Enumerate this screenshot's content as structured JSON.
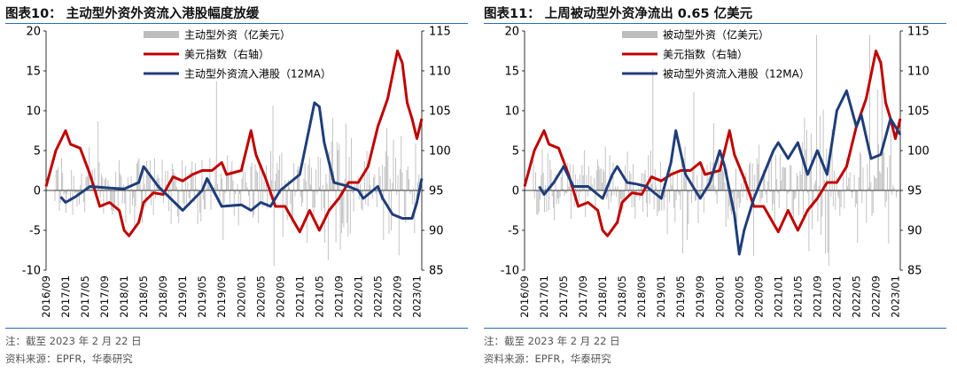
{
  "charts": [
    {
      "title": "图表10： 主动型外资外资流入港股幅度放缓",
      "note": "注：截至 2023 年 2 月 22 日",
      "source": "资料来源：EPFR，华泰研究",
      "legend": [
        "主动型外资（亿美元）",
        "美元指数（右轴）",
        "主动型外资流入港股（12MA）"
      ],
      "colors": {
        "bars": "#bdbdbd",
        "dxy": "#c00000",
        "ma": "#1f3d7a"
      }
    },
    {
      "title": "图表11： 上周被动型外资净流出 0.65 亿美元",
      "note": "注：截至 2023 年 2 月 22 日",
      "source": "资料来源：EPFR，华泰研究",
      "legend": [
        "被动型外资（亿美元）",
        "美元指数（右轴）",
        "被动型外资流入港股（12MA）"
      ],
      "colors": {
        "bars": "#bdbdbd",
        "dxy": "#c00000",
        "ma": "#1f3d7a"
      }
    }
  ],
  "chart_data": [
    {
      "type": "line",
      "x_axis": {
        "start": "2016/09",
        "end": "2023/02",
        "tick_labels": [
          "2016/09",
          "2017/01",
          "2017/05",
          "2017/09",
          "2018/01",
          "2018/05",
          "2018/09",
          "2019/01",
          "2019/05",
          "2019/09",
          "2020/01",
          "2020/05",
          "2020/09",
          "2021/01",
          "2021/05",
          "2021/09",
          "2022/01",
          "2022/05",
          "2022/09",
          "2023/01"
        ]
      },
      "y_left": {
        "min": -10,
        "max": 20,
        "ticks": [
          -10,
          -5,
          0,
          5,
          10,
          15,
          20
        ]
      },
      "y_right": {
        "min": 85,
        "max": 115,
        "ticks": [
          85,
          90,
          95,
          100,
          105,
          110,
          115
        ]
      },
      "series": [
        {
          "name": "美元指数（右轴）",
          "axis": "right",
          "points": [
            [
              "2016/09",
              95.5
            ],
            [
              "2016/11",
              100.0
            ],
            [
              "2017/01",
              102.5
            ],
            [
              "2017/02",
              100.8
            ],
            [
              "2017/04",
              100.3
            ],
            [
              "2017/06",
              97.0
            ],
            [
              "2017/08",
              93.0
            ],
            [
              "2017/10",
              93.5
            ],
            [
              "2017/12",
              92.5
            ],
            [
              "2018/01",
              90.0
            ],
            [
              "2018/02",
              89.3
            ],
            [
              "2018/04",
              91.0
            ],
            [
              "2018/05",
              93.5
            ],
            [
              "2018/07",
              94.7
            ],
            [
              "2018/09",
              94.5
            ],
            [
              "2018/11",
              96.7
            ],
            [
              "2019/01",
              96.2
            ],
            [
              "2019/03",
              97.0
            ],
            [
              "2019/05",
              97.5
            ],
            [
              "2019/07",
              97.5
            ],
            [
              "2019/09",
              98.5
            ],
            [
              "2019/10",
              97.0
            ],
            [
              "2020/01",
              97.5
            ],
            [
              "2020/03",
              102.5
            ],
            [
              "2020/04",
              99.5
            ],
            [
              "2020/06",
              96.5
            ],
            [
              "2020/08",
              93.0
            ],
            [
              "2020/10",
              93.0
            ],
            [
              "2021/01",
              89.8
            ],
            [
              "2021/03",
              92.5
            ],
            [
              "2021/05",
              90.0
            ],
            [
              "2021/07",
              92.5
            ],
            [
              "2021/09",
              94.0
            ],
            [
              "2021/11",
              96.0
            ],
            [
              "2022/01",
              96.0
            ],
            [
              "2022/03",
              98.0
            ],
            [
              "2022/05",
              103.0
            ],
            [
              "2022/07",
              106.5
            ],
            [
              "2022/09",
              112.5
            ],
            [
              "2022/10",
              111.0
            ],
            [
              "2022/11",
              106.0
            ],
            [
              "2022/12",
              104.0
            ],
            [
              "2023/01",
              101.5
            ],
            [
              "2023/02",
              104.0
            ]
          ]
        },
        {
          "name": "主动型外资流入港股（12MA）",
          "axis": "left",
          "points": [
            [
              "2016/12",
              -0.8
            ],
            [
              "2017/01",
              -1.5
            ],
            [
              "2017/03",
              -0.8
            ],
            [
              "2017/06",
              0.5
            ],
            [
              "2017/10",
              0.3
            ],
            [
              "2018/01",
              0.2
            ],
            [
              "2018/04",
              1.0
            ],
            [
              "2018/05",
              3.0
            ],
            [
              "2018/08",
              0.5
            ],
            [
              "2019/01",
              -2.5
            ],
            [
              "2019/05",
              0.0
            ],
            [
              "2019/06",
              1.5
            ],
            [
              "2019/09",
              -2.0
            ],
            [
              "2020/01",
              -1.8
            ],
            [
              "2020/03",
              -2.5
            ],
            [
              "2020/05",
              -1.5
            ],
            [
              "2020/07",
              -2.0
            ],
            [
              "2020/09",
              0.0
            ],
            [
              "2020/11",
              1.0
            ],
            [
              "2021/01",
              2.0
            ],
            [
              "2021/03",
              8.0
            ],
            [
              "2021/04",
              11.0
            ],
            [
              "2021/05",
              10.5
            ],
            [
              "2021/06",
              6.0
            ],
            [
              "2021/08",
              1.0
            ],
            [
              "2021/11",
              0.5
            ],
            [
              "2022/01",
              0.0
            ],
            [
              "2022/02",
              -1.0
            ],
            [
              "2022/03",
              -0.5
            ],
            [
              "2022/05",
              0.5
            ],
            [
              "2022/06",
              -1.0
            ],
            [
              "2022/08",
              -3.0
            ],
            [
              "2022/10",
              -3.5
            ],
            [
              "2022/12",
              -3.5
            ],
            [
              "2023/01",
              -1.5
            ],
            [
              "2023/02",
              1.5
            ]
          ]
        }
      ]
    },
    {
      "type": "line",
      "x_axis": {
        "start": "2016/09",
        "end": "2023/02",
        "tick_labels": [
          "2016/09",
          "2017/01",
          "2017/05",
          "2017/09",
          "2018/01",
          "2018/05",
          "2018/09",
          "2019/01",
          "2019/05",
          "2019/09",
          "2020/01",
          "2020/05",
          "2020/09",
          "2021/01",
          "2021/05",
          "2021/09",
          "2022/01",
          "2022/05",
          "2022/09",
          "2023/01"
        ]
      },
      "y_left": {
        "min": -10,
        "max": 20,
        "ticks": [
          -10,
          -5,
          0,
          5,
          10,
          15,
          20
        ]
      },
      "y_right": {
        "min": 85,
        "max": 115,
        "ticks": [
          85,
          90,
          95,
          100,
          105,
          110,
          115
        ]
      },
      "series": [
        {
          "name": "美元指数（右轴）",
          "axis": "right",
          "points": [
            [
              "2016/09",
              95.5
            ],
            [
              "2016/11",
              100.0
            ],
            [
              "2017/01",
              102.5
            ],
            [
              "2017/02",
              100.8
            ],
            [
              "2017/04",
              100.3
            ],
            [
              "2017/06",
              97.0
            ],
            [
              "2017/08",
              93.0
            ],
            [
              "2017/10",
              93.5
            ],
            [
              "2017/12",
              92.5
            ],
            [
              "2018/01",
              90.0
            ],
            [
              "2018/02",
              89.3
            ],
            [
              "2018/04",
              91.0
            ],
            [
              "2018/05",
              93.5
            ],
            [
              "2018/07",
              94.7
            ],
            [
              "2018/09",
              94.5
            ],
            [
              "2018/11",
              96.7
            ],
            [
              "2019/01",
              96.2
            ],
            [
              "2019/03",
              97.0
            ],
            [
              "2019/05",
              97.5
            ],
            [
              "2019/07",
              97.5
            ],
            [
              "2019/09",
              98.5
            ],
            [
              "2019/10",
              97.0
            ],
            [
              "2020/01",
              97.5
            ],
            [
              "2020/03",
              102.5
            ],
            [
              "2020/04",
              99.5
            ],
            [
              "2020/06",
              96.5
            ],
            [
              "2020/08",
              93.0
            ],
            [
              "2020/10",
              93.0
            ],
            [
              "2021/01",
              89.8
            ],
            [
              "2021/03",
              92.5
            ],
            [
              "2021/05",
              90.0
            ],
            [
              "2021/07",
              92.5
            ],
            [
              "2021/09",
              94.0
            ],
            [
              "2021/11",
              96.0
            ],
            [
              "2022/01",
              96.0
            ],
            [
              "2022/03",
              98.0
            ],
            [
              "2022/05",
              103.0
            ],
            [
              "2022/07",
              106.5
            ],
            [
              "2022/09",
              112.5
            ],
            [
              "2022/10",
              111.0
            ],
            [
              "2022/11",
              106.0
            ],
            [
              "2022/12",
              104.0
            ],
            [
              "2023/01",
              101.5
            ],
            [
              "2023/02",
              104.0
            ]
          ]
        },
        {
          "name": "被动型外资流入港股（12MA）",
          "axis": "left",
          "points": [
            [
              "2016/12",
              0.5
            ],
            [
              "2017/01",
              -0.5
            ],
            [
              "2017/03",
              1.0
            ],
            [
              "2017/05",
              3.0
            ],
            [
              "2017/07",
              0.5
            ],
            [
              "2017/10",
              0.5
            ],
            [
              "2018/01",
              -1.0
            ],
            [
              "2018/03",
              2.0
            ],
            [
              "2018/04",
              3.0
            ],
            [
              "2018/06",
              1.0
            ],
            [
              "2018/08",
              0.8
            ],
            [
              "2018/10",
              0.5
            ],
            [
              "2019/01",
              -1.0
            ],
            [
              "2019/03",
              3.5
            ],
            [
              "2019/04",
              7.5
            ],
            [
              "2019/06",
              2.0
            ],
            [
              "2019/09",
              -1.0
            ],
            [
              "2019/11",
              1.0
            ],
            [
              "2020/01",
              5.0
            ],
            [
              "2020/02",
              3.0
            ],
            [
              "2020/04",
              -3.0
            ],
            [
              "2020/05",
              -8.0
            ],
            [
              "2020/06",
              -5.0
            ],
            [
              "2020/08",
              -1.0
            ],
            [
              "2020/10",
              2.0
            ],
            [
              "2020/12",
              5.0
            ],
            [
              "2021/01",
              6.0
            ],
            [
              "2021/03",
              4.0
            ],
            [
              "2021/05",
              6.0
            ],
            [
              "2021/07",
              2.0
            ],
            [
              "2021/09",
              5.0
            ],
            [
              "2021/11",
              2.0
            ],
            [
              "2022/01",
              10.0
            ],
            [
              "2022/03",
              12.5
            ],
            [
              "2022/05",
              8.0
            ],
            [
              "2022/06",
              9.5
            ],
            [
              "2022/08",
              4.0
            ],
            [
              "2022/10",
              4.5
            ],
            [
              "2022/12",
              9.0
            ],
            [
              "2023/01",
              8.0
            ],
            [
              "2023/02",
              7.0
            ]
          ]
        }
      ]
    }
  ]
}
